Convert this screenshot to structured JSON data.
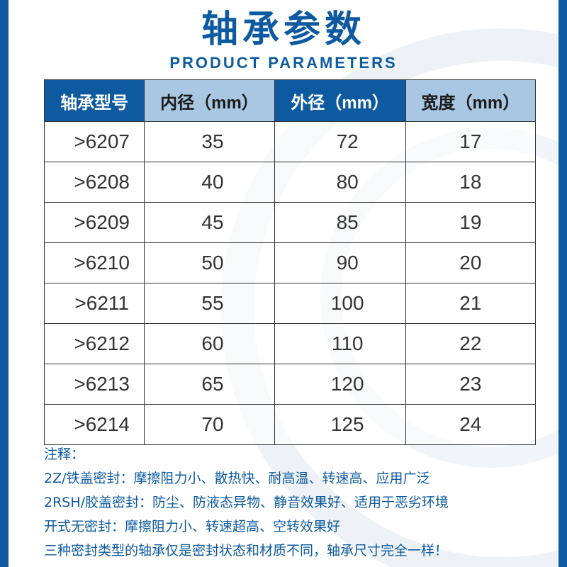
{
  "header": {
    "title": "轴承参数",
    "subtitle": "PRODUCT PARAMETERS"
  },
  "table": {
    "headers": [
      "轴承型号",
      "内径（mm）",
      "外径（mm）",
      "宽度（mm）"
    ],
    "rows": [
      [
        ">6207",
        "35",
        "72",
        "17"
      ],
      [
        ">6208",
        "40",
        "80",
        "18"
      ],
      [
        ">6209",
        "45",
        "85",
        "19"
      ],
      [
        ">6210",
        "50",
        "90",
        "20"
      ],
      [
        ">6211",
        "55",
        "100",
        "21"
      ],
      [
        ">6212",
        "60",
        "110",
        "22"
      ],
      [
        ">6213",
        "65",
        "120",
        "23"
      ],
      [
        ">6214",
        "70",
        "125",
        "24"
      ]
    ]
  },
  "notes": {
    "label": "注释：",
    "lines": [
      "2Z/铁盖密封：摩擦阻力小、散热快、耐高温、转速高、应用广泛",
      "2RSH/胶盖密封：防尘、防液态异物、静音效果好、适用于恶劣环境",
      "开式无密封：摩擦阻力小、转速超高、空转效果好",
      "三种密封类型的轴承仅是密封状态和材质不同，轴承尺寸完全一样！"
    ]
  },
  "colors": {
    "brand_blue": "#0d5aa0",
    "header_light_blue": "#a9c7e3"
  }
}
